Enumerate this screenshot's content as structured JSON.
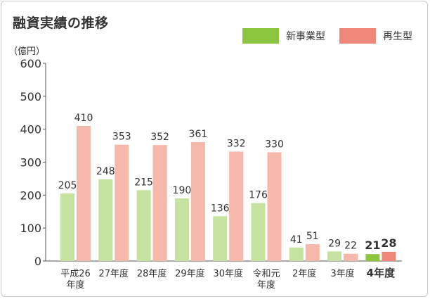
{
  "colors": {
    "new_light": "#c6e2a0",
    "new_dark": "#8cc63f",
    "re_light": "#f6b8ab",
    "re_dark": "#f0887a",
    "axis": "#555555"
  },
  "chart_data": {
    "type": "bar",
    "title": "融資実績の推移",
    "ylabel": "（億円）",
    "ylim": [
      0,
      600
    ],
    "yticks": [
      0,
      100,
      200,
      300,
      400,
      500,
      600
    ],
    "legend_position": "top-right",
    "categories": [
      [
        "平成26",
        "年度"
      ],
      [
        "27年度"
      ],
      [
        "28年度"
      ],
      [
        "29年度"
      ],
      [
        "30年度"
      ],
      [
        "令和元",
        "年度"
      ],
      [
        "2年度"
      ],
      [
        "3年度"
      ],
      [
        "4年度"
      ]
    ],
    "highlight_index": 8,
    "series": [
      {
        "name": "新事業型",
        "values": [
          205,
          248,
          215,
          190,
          136,
          176,
          41,
          29,
          21
        ]
      },
      {
        "name": "再生型",
        "values": [
          410,
          353,
          352,
          361,
          332,
          330,
          51,
          22,
          28
        ]
      }
    ]
  }
}
